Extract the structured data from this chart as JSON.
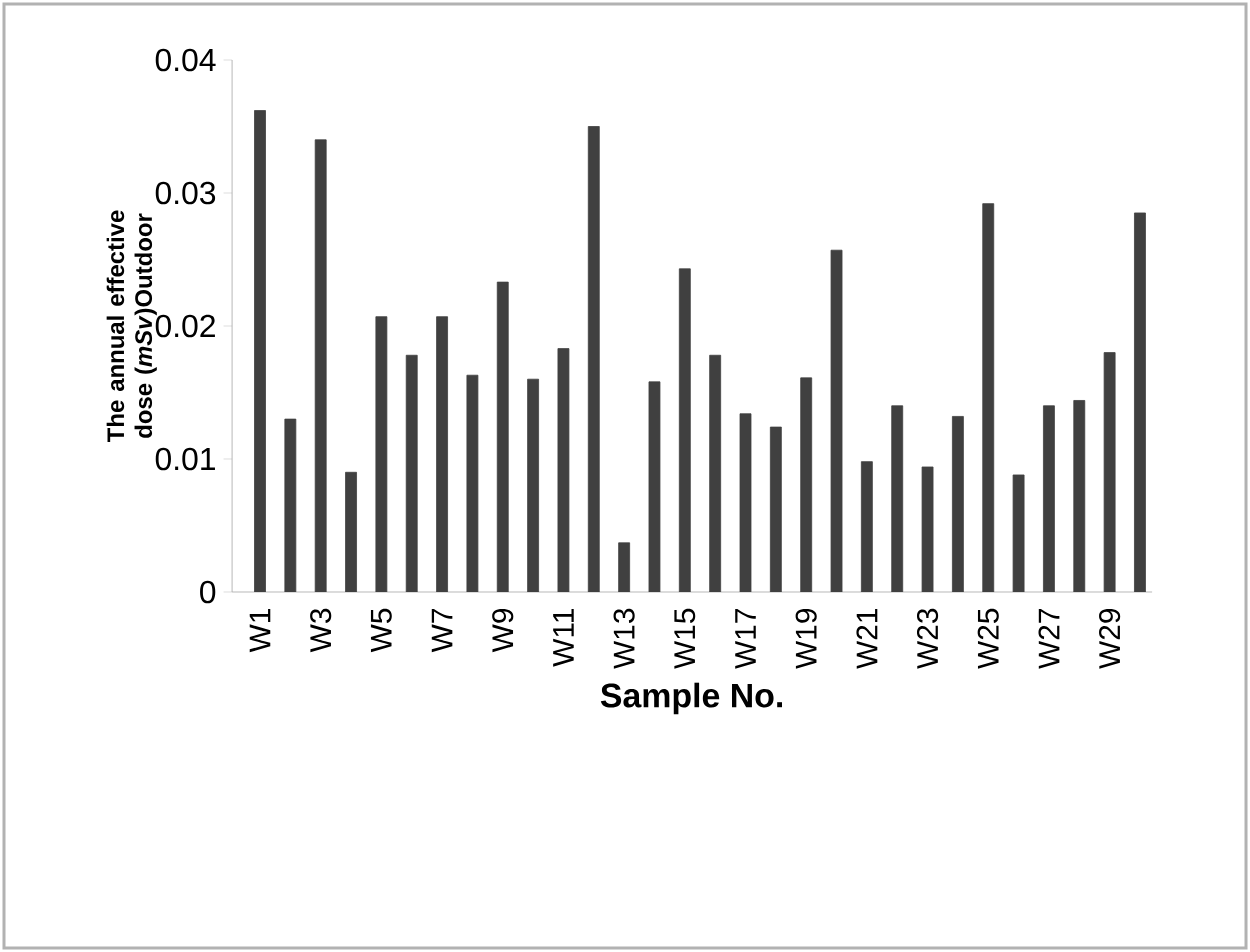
{
  "chart_data": {
    "type": "bar",
    "xlabel": "Sample No.",
    "ylabel": "The annual effective dose (*mSv*)Outdoor",
    "categories": [
      "W1",
      null,
      "W3",
      null,
      "W5",
      null,
      "W7",
      null,
      "W9",
      null,
      "W11",
      null,
      "W13",
      null,
      "W15",
      null,
      "W17",
      null,
      "W19",
      null,
      "W21",
      null,
      "W23",
      null,
      "W25",
      null,
      "W27",
      null,
      "W29",
      null
    ],
    "values": [
      0.0362,
      0.013,
      0.034,
      0.009,
      0.0207,
      0.0178,
      0.0207,
      0.0163,
      0.0233,
      0.016,
      0.0183,
      0.035,
      0.0037,
      0.0158,
      0.0243,
      0.0178,
      0.0134,
      0.0124,
      0.0161,
      0.0257,
      0.0098,
      0.014,
      0.0094,
      0.0132,
      0.0292,
      0.0088,
      0.014,
      0.0144,
      0.018,
      0.0285
    ],
    "color": "#404040",
    "ylim": [
      0,
      0.04
    ],
    "yticks": [
      0,
      0.01,
      0.02,
      0.03,
      0.04
    ],
    "grid": false
  }
}
